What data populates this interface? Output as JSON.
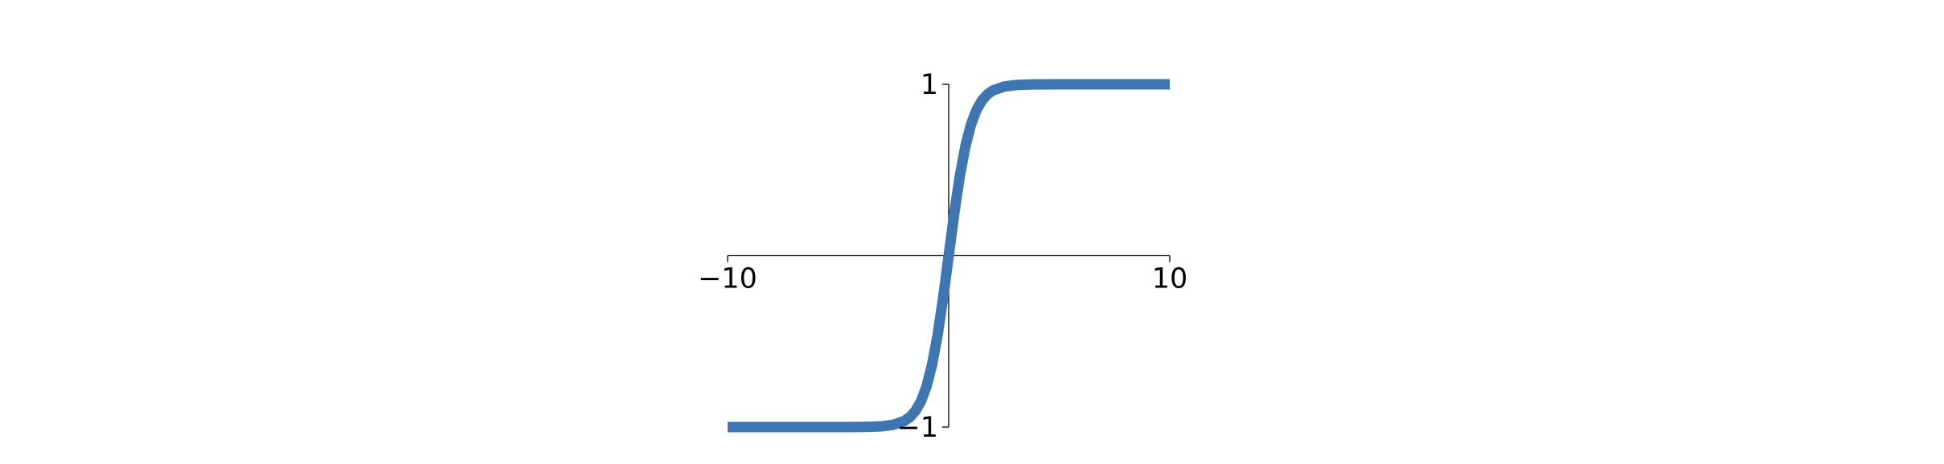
{
  "chart_data": {
    "type": "line",
    "title": "",
    "xlabel": "",
    "ylabel": "",
    "xlim": [
      -10,
      10
    ],
    "ylim": [
      -1,
      1
    ],
    "grid": false,
    "x_ticks": [
      {
        "value": -10,
        "label": "−10"
      },
      {
        "value": 10,
        "label": "10"
      }
    ],
    "y_ticks": [
      {
        "value": 1,
        "label": "1"
      },
      {
        "value": -1,
        "label": "−1"
      }
    ],
    "series": [
      {
        "color": "#3d76b0",
        "x": [
          -10,
          -9,
          -8,
          -7,
          -6,
          -5,
          -4,
          -3.5,
          -3,
          -2.5,
          -2,
          -1.75,
          -1.5,
          -1.25,
          -1,
          -0.75,
          -0.5,
          -0.25,
          0,
          0.25,
          0.5,
          0.75,
          1,
          1.25,
          1.5,
          1.75,
          2,
          2.5,
          3,
          3.5,
          4,
          5,
          6,
          7,
          8,
          9,
          10
        ],
        "y": [
          -1,
          -1,
          -1,
          -1,
          -1,
          -0.9999,
          -0.9993,
          -0.9982,
          -0.9951,
          -0.9866,
          -0.964,
          -0.9414,
          -0.9051,
          -0.8483,
          -0.7616,
          -0.6351,
          -0.4621,
          -0.2449,
          0,
          0.2449,
          0.4621,
          0.6351,
          0.7616,
          0.8483,
          0.9051,
          0.9414,
          0.964,
          0.9866,
          0.9951,
          0.9982,
          0.9993,
          0.9999,
          1,
          1,
          1,
          1,
          1
        ]
      }
    ]
  }
}
